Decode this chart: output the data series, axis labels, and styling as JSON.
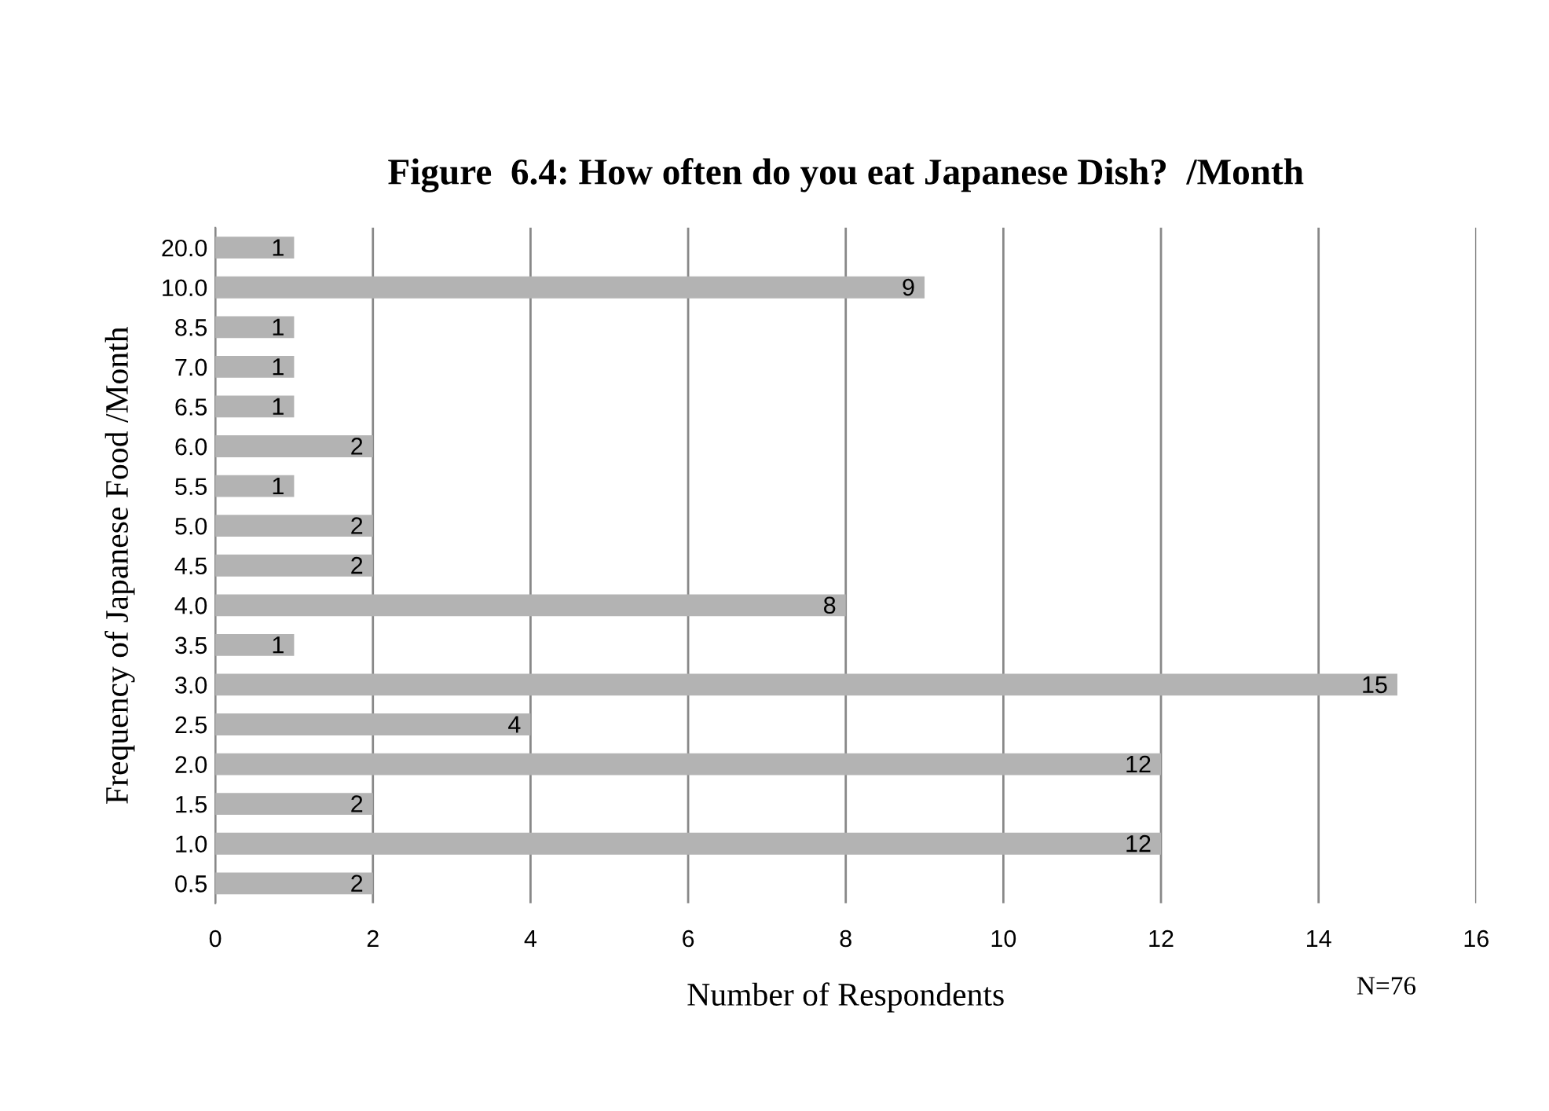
{
  "chart_data": {
    "type": "bar",
    "orientation": "horizontal",
    "title": "Figure  6.4: How often do you eat Japanese Dish?  /Month",
    "xlabel": "Number of Respondents",
    "ylabel": "Frequency of Japanese Food /Month",
    "categories": [
      "20.0",
      "10.0",
      "8.5",
      "7.0",
      "6.5",
      "6.0",
      "5.5",
      "5.0",
      "4.5",
      "4.0",
      "3.5",
      "3.0",
      "2.5",
      "2.0",
      "1.5",
      "1.0",
      "0.5"
    ],
    "values": [
      1,
      9,
      1,
      1,
      1,
      2,
      1,
      2,
      2,
      8,
      1,
      15,
      4,
      12,
      2,
      12,
      2
    ],
    "color": "#b3b3b3",
    "xlim": [
      0,
      16
    ],
    "xticks": [
      0,
      2,
      4,
      6,
      8,
      10,
      12,
      14,
      16
    ],
    "grid": "x",
    "data_labels": true,
    "legend": false,
    "annotations": [
      "N=76"
    ]
  }
}
